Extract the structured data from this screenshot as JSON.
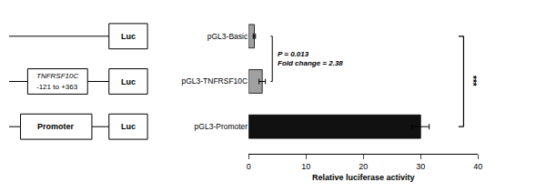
{
  "chart_data": {
    "type": "bar",
    "orientation": "horizontal",
    "categories": [
      "pGL3-Basic",
      "pGL3-TNFRSF10C",
      "pGL3-Promoter"
    ],
    "values": [
      1.0,
      2.38,
      30.0
    ],
    "errors": [
      0.2,
      0.55,
      1.5
    ],
    "colors": [
      "#a0a0a0",
      "#a0a0a0",
      "#111111"
    ],
    "xlabel": "Relative luciferase activity",
    "xlim": [
      0,
      40
    ],
    "xticks": [
      0,
      10,
      20,
      30,
      40
    ],
    "grid": false,
    "annotations": [
      "P = 0.013\nFold change = 2.38",
      "***",
      "TNFRSF10C",
      "-121 to +363",
      "Promoter",
      "Luc",
      "Luc",
      "Luc"
    ]
  }
}
